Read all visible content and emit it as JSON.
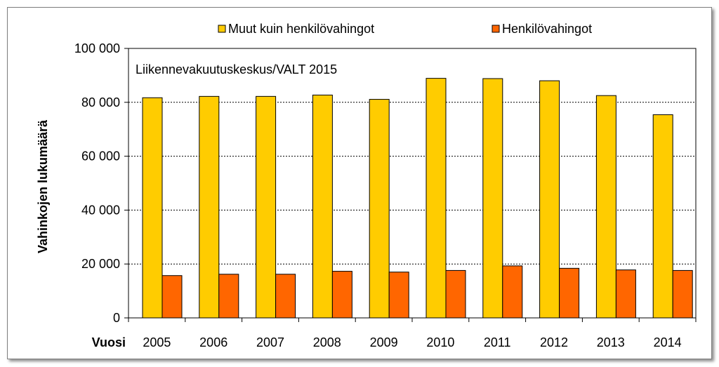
{
  "chart_data": {
    "type": "bar",
    "annotation": "Liikennevakuutuskeskus/VALT 2015",
    "ylabel": "Vahinkojen lukumäärä",
    "xlabel": "Vuosi",
    "ylim": [
      0,
      100000
    ],
    "yticks": [
      0,
      20000,
      40000,
      60000,
      80000,
      100000
    ],
    "ytick_labels": [
      "0",
      "20 000",
      "40 000",
      "60 000",
      "80 000",
      "100 000"
    ],
    "grid": true,
    "legend_position": "top",
    "categories": [
      "2005",
      "2006",
      "2007",
      "2008",
      "2009",
      "2010",
      "2011",
      "2012",
      "2013",
      "2014"
    ],
    "series": [
      {
        "name": "Muut kuin henkilövahingot",
        "color": "#FFCC00",
        "values": [
          81700,
          82200,
          82200,
          82700,
          81100,
          88900,
          88800,
          88000,
          82500,
          75400
        ]
      },
      {
        "name": "Henkilövahingot",
        "color": "#FF6600",
        "values": [
          15700,
          16200,
          16200,
          17300,
          17000,
          17600,
          19300,
          18400,
          17800,
          17600
        ]
      }
    ]
  }
}
